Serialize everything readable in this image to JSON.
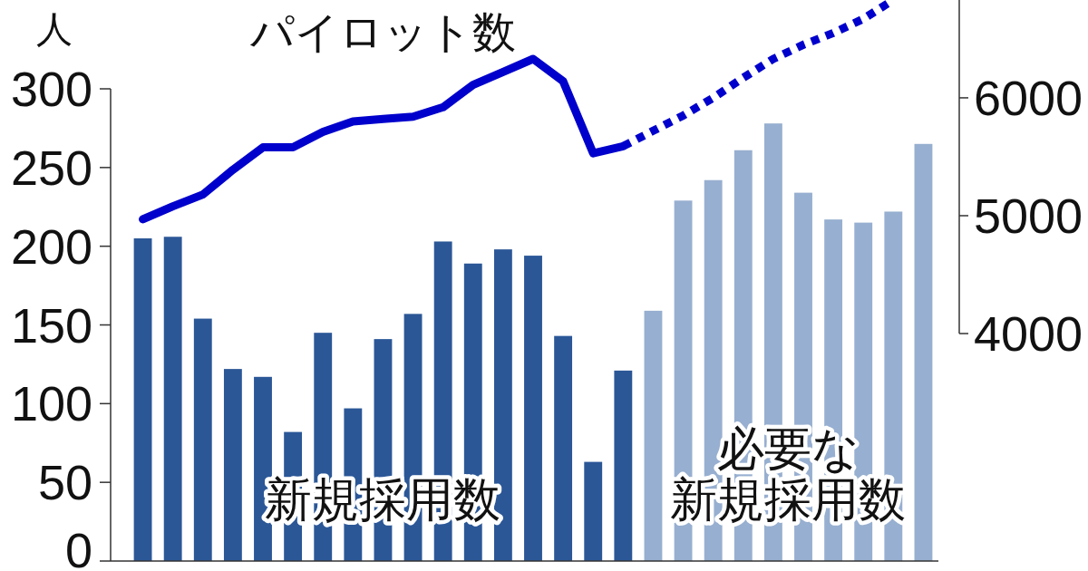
{
  "chart_data": {
    "type": "bar",
    "ylabel": "人",
    "categories": [
      null,
      null,
      null,
      null,
      null,
      null,
      null,
      null,
      null,
      null,
      null,
      null,
      null,
      null,
      null,
      null,
      null,
      null,
      null,
      null,
      null,
      null,
      null,
      null,
      null,
      null,
      null
    ],
    "series": [
      {
        "name": "新規採用数",
        "color": "#2b5797",
        "values": [
          205,
          206,
          154,
          122,
          117,
          82,
          145,
          97,
          141,
          157,
          203,
          189,
          198,
          194,
          143,
          63,
          121,
          null,
          null,
          null,
          null,
          null,
          null,
          null,
          null,
          null,
          null
        ]
      },
      {
        "name": "必要な新規採用数",
        "color": "#97afd0",
        "values": [
          null,
          null,
          null,
          null,
          null,
          null,
          null,
          null,
          null,
          null,
          null,
          null,
          null,
          null,
          null,
          null,
          null,
          159,
          229,
          242,
          261,
          278,
          234,
          217,
          215,
          222,
          265
        ]
      },
      {
        "name": "パイロット数",
        "type": "line",
        "axis": "y2",
        "color": "#0000cc",
        "line_style": "solid",
        "values": [
          4970,
          5080,
          5180,
          5390,
          5580,
          5580,
          5710,
          5800,
          5820,
          5840,
          5920,
          6110,
          6220,
          6330,
          6140,
          5530,
          5590,
          null,
          null,
          null,
          null,
          null,
          null,
          null,
          null,
          null,
          null
        ]
      },
      {
        "type": "line",
        "axis": "y2",
        "color": "#0000cc",
        "line_style": "dotted",
        "values": [
          null,
          null,
          null,
          null,
          null,
          null,
          null,
          null,
          null,
          null,
          null,
          null,
          null,
          null,
          null,
          null,
          5590,
          5720,
          5850,
          6000,
          6170,
          6330,
          6450,
          6550,
          6670,
          6830,
          null
        ]
      }
    ],
    "ylim": [
      0,
      300
    ],
    "yticks": [
      0,
      50,
      100,
      150,
      200,
      250,
      300
    ],
    "y2lim": [
      2070,
      6830
    ],
    "y2ticks": [
      4000,
      5000,
      6000
    ]
  }
}
